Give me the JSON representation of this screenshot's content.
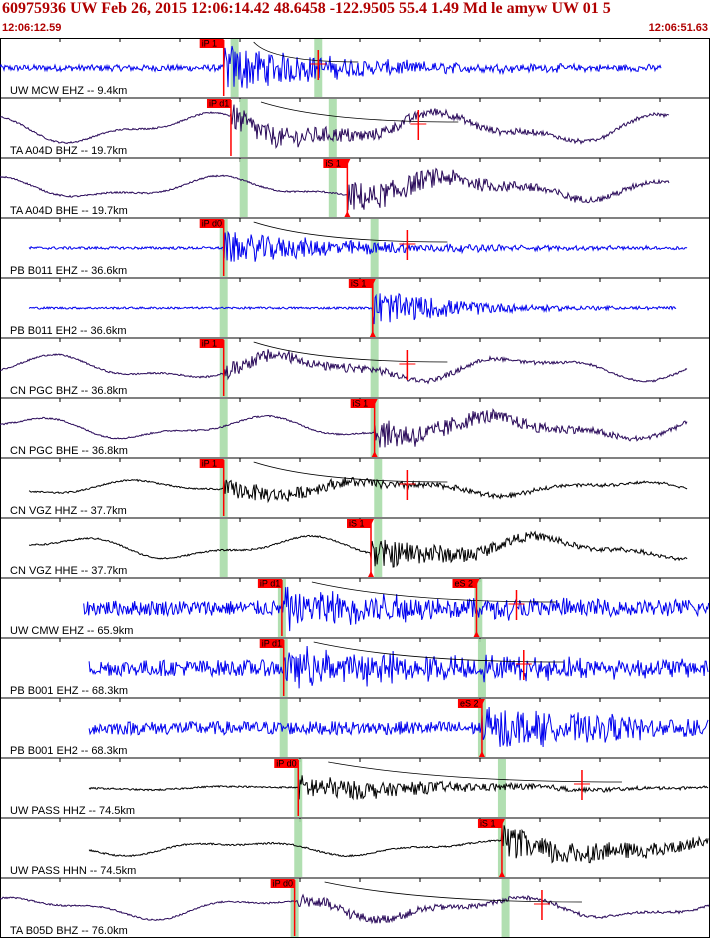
{
  "header": {
    "title": "60975936 UW Feb 26, 2015 12:06:14.42   48.6458 -122.9505 55.4 1.49 Md le amyw UW 01   5",
    "time_start": "12:06:12.59",
    "time_end": "12:06:51.63"
  },
  "colors": {
    "header_text": "#b00000",
    "pick_marker": "#ff0000",
    "theoretical_arrival": "#a8dca8",
    "trace_blue": "#0000ee",
    "trace_purple": "#2a0a5a",
    "trace_black": "#000000"
  },
  "chart_data": {
    "type": "seismogram",
    "x_unit": "seconds after 12:06:12.59",
    "xlim": [
      0,
      39.04
    ],
    "traces": [
      {
        "label": "UW MCW EHZ -- 9.4km",
        "color": "#0000ee",
        "style": "noisy",
        "start": 0,
        "end": 36.4,
        "amp": 0.12,
        "event": 12.3,
        "event_amp": 0.9,
        "decay": 0.15,
        "picks": [
          {
            "label": "iP 1",
            "t": 12.3
          }
        ],
        "arrivals": [
          12.9,
          17.5
        ],
        "coda": 17.5
      },
      {
        "label": "TA A04D BHZ -- 19.7km",
        "color": "#2a0a5a",
        "style": "wave",
        "start": 0,
        "end": 36.8,
        "amp": 0.6,
        "event": 12.7,
        "event_amp": 0.5,
        "decay": 0.1,
        "picks": [
          {
            "label": "iP d1",
            "t": 12.7
          }
        ],
        "arrivals": [
          13.4,
          18.3
        ],
        "coda": 23.0
      },
      {
        "label": "TA A04D BHE -- 19.7km",
        "color": "#2a0a5a",
        "style": "wave",
        "start": 0,
        "end": 36.8,
        "amp": 0.45,
        "event": 19.1,
        "event_amp": 0.6,
        "decay": 0.12,
        "picks": [
          {
            "label": "iS 1",
            "t": 19.1
          }
        ],
        "arrivals": [
          13.4,
          18.3
        ]
      },
      {
        "label": "PB B011 EHZ -- 36.6km",
        "color": "#0000ee",
        "style": "noisy",
        "start": 1.6,
        "end": 37.8,
        "amp": 0.05,
        "event": 12.3,
        "event_amp": 0.6,
        "decay": 0.12,
        "picks": [
          {
            "label": "iP d0",
            "t": 12.3
          }
        ],
        "arrivals": [
          12.3,
          20.6
        ],
        "coda": 22.4
      },
      {
        "label": "PB B011 EH2 -- 36.6km",
        "color": "#0000ee",
        "style": "noisy",
        "start": 1.6,
        "end": 37.2,
        "amp": 0.04,
        "event": 20.5,
        "event_amp": 0.7,
        "decay": 0.2,
        "picks": [
          {
            "label": "iS 1",
            "t": 20.5
          }
        ],
        "arrivals": [
          12.3,
          20.6
        ]
      },
      {
        "label": "CN PGC BHZ -- 36.8km",
        "color": "#2a0a5a",
        "style": "wave",
        "start": 0,
        "end": 37.8,
        "amp": 0.5,
        "event": 12.3,
        "event_amp": 0.3,
        "decay": 0.1,
        "picks": [
          {
            "label": "iP 1",
            "t": 12.3
          }
        ],
        "arrivals": [
          12.3,
          20.6
        ],
        "coda": 22.4
      },
      {
        "label": "CN PGC BHE -- 36.8km",
        "color": "#2a0a5a",
        "style": "wave",
        "start": 0,
        "end": 37.8,
        "amp": 0.45,
        "event": 20.6,
        "event_amp": 0.55,
        "decay": 0.12,
        "picks": [
          {
            "label": "iS 1",
            "t": 20.6
          }
        ],
        "arrivals": [
          12.3,
          20.6
        ]
      },
      {
        "label": "CN VGZ HHZ -- 37.7km",
        "color": "#000000",
        "style": "wave",
        "start": 1.6,
        "end": 37.8,
        "amp": 0.3,
        "event": 12.3,
        "event_amp": 0.35,
        "decay": 0.1,
        "picks": [
          {
            "label": "iP 1",
            "t": 12.3
          }
        ],
        "arrivals": [
          12.3,
          20.8
        ],
        "coda": 22.4
      },
      {
        "label": "CN VGZ HHE -- 37.7km",
        "color": "#000000",
        "style": "wave",
        "start": 1.6,
        "end": 37.8,
        "amp": 0.45,
        "event": 20.4,
        "event_amp": 0.6,
        "decay": 0.15,
        "picks": [
          {
            "label": "iS 1",
            "t": 20.4
          }
        ],
        "arrivals": [
          12.3,
          20.8
        ]
      },
      {
        "label": "UW CMW EHZ -- 65.9km",
        "color": "#0000ee",
        "style": "noisy",
        "start": 4.6,
        "end": 40.8,
        "amp": 0.28,
        "event": 15.5,
        "event_amp": 0.7,
        "decay": 0.1,
        "picks": [
          {
            "label": "iP d1",
            "t": 15.5
          },
          {
            "label": "eS 2",
            "t": 26.2
          }
        ],
        "arrivals": [
          15.5,
          26.3
        ],
        "coda": 28.4
      },
      {
        "label": "PB B001 EHZ -- 68.3km",
        "color": "#0000ee",
        "style": "noisy",
        "start": 4.9,
        "end": 41.0,
        "amp": 0.3,
        "event": 15.6,
        "event_amp": 0.65,
        "decay": 0.08,
        "picks": [
          {
            "label": "iP d1",
            "t": 15.6
          }
        ],
        "arrivals": [
          15.6,
          26.5
        ],
        "coda": 28.8
      },
      {
        "label": "PB B001 EH2 -- 68.3km",
        "color": "#0000ee",
        "style": "noisy",
        "start": 4.9,
        "end": 41.0,
        "amp": 0.25,
        "event": 26.5,
        "event_amp": 0.7,
        "decay": 0.1,
        "picks": [
          {
            "label": "eS 2",
            "t": 26.5
          }
        ],
        "arrivals": [
          15.6,
          26.5
        ]
      },
      {
        "label": "UW PASS HHZ -- 74.5km",
        "color": "#000000",
        "style": "wave",
        "start": 4.9,
        "end": 41.0,
        "amp": 0.08,
        "event": 16.4,
        "event_amp": 0.5,
        "decay": 0.12,
        "picks": [
          {
            "label": "iP d0",
            "t": 16.4
          }
        ],
        "arrivals": [
          16.4,
          27.6
        ],
        "coda": 32.0
      },
      {
        "label": "UW PASS HHN -- 74.5km",
        "color": "#000000",
        "style": "wave",
        "start": 4.9,
        "end": 41.0,
        "amp": 0.3,
        "event": 27.6,
        "event_amp": 0.6,
        "decay": 0.1,
        "picks": [
          {
            "label": "iS 1",
            "t": 27.6
          }
        ],
        "arrivals": [
          16.4,
          27.6
        ]
      },
      {
        "label": "TA B05D BHZ -- 76.0km",
        "color": "#2a0a5a",
        "style": "wave",
        "start": 0,
        "end": 41.0,
        "amp": 0.45,
        "event": 16.2,
        "event_amp": 0.25,
        "decay": 0.1,
        "picks": [
          {
            "label": "iP d0",
            "t": 16.2
          }
        ],
        "arrivals": [
          16.2,
          27.8
        ],
        "coda": 29.8
      }
    ]
  }
}
